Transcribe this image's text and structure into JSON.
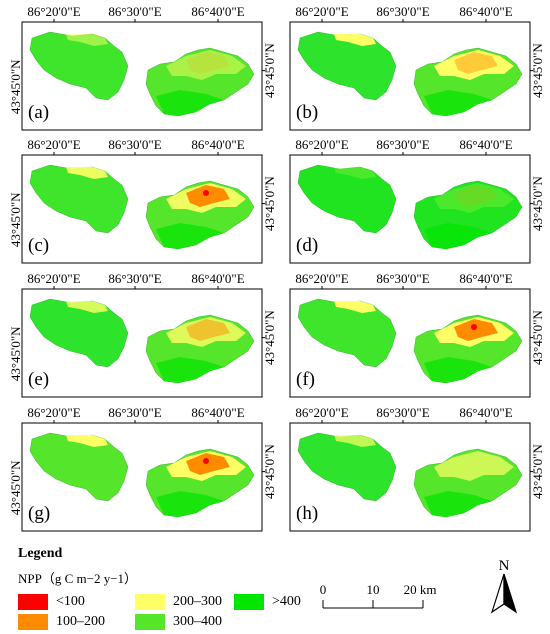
{
  "axis_labels": {
    "x": [
      "86°20'0\"E",
      "86°30'0\"E",
      "86°40'0\"E"
    ],
    "y": "43°45'0\"N"
  },
  "panels": [
    {
      "id": "a",
      "label": "(a)"
    },
    {
      "id": "b",
      "label": "(b)"
    },
    {
      "id": "c",
      "label": "(c)"
    },
    {
      "id": "d",
      "label": "(d)"
    },
    {
      "id": "e",
      "label": "(e)"
    },
    {
      "id": "f",
      "label": "(f)"
    },
    {
      "id": "g",
      "label": "(g)"
    },
    {
      "id": "h",
      "label": "(h)"
    }
  ],
  "legend": {
    "title": "Legend",
    "subtitle": "NPP（g C m−2 y−1）",
    "items": [
      {
        "label": "<100",
        "color": "#ff0000"
      },
      {
        "label": "100–200",
        "color": "#ff8c00"
      },
      {
        "label": "200–300",
        "color": "#ffff66"
      },
      {
        "label": "300–400",
        "color": "#55e52b"
      },
      {
        "label": ">400",
        "color": "#00e600"
      }
    ]
  },
  "scale_bar": {
    "ticks": [
      "0",
      "10",
      "20 km"
    ]
  },
  "north_arrow": {
    "label": "N"
  }
}
